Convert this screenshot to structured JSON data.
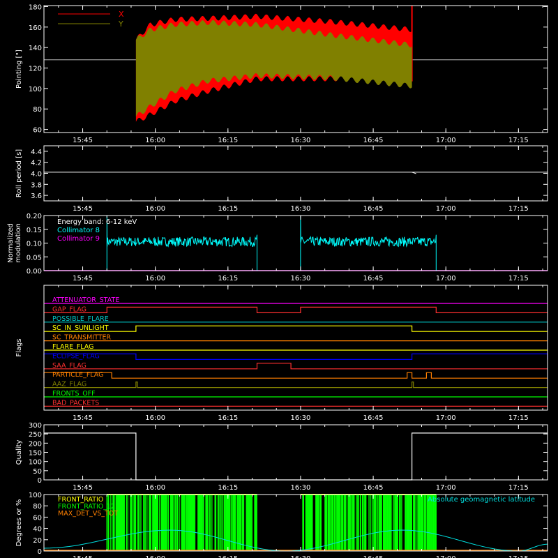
{
  "colors": {
    "background": "#000000",
    "axes": "#ffffff",
    "x_pointing": "#ff0000",
    "y_pointing": "#808000",
    "collimator8": "#00ffff",
    "collimator9": "#ff00ff",
    "front_ratio": "#ffff00",
    "front_ratio_1225": "#00ff00",
    "max_det_vs_tot": "#ff8000",
    "geomag_lat": "#00e0e0"
  },
  "time_ticks": [
    "15:45",
    "16:00",
    "16:15",
    "16:30",
    "16:45",
    "17:00",
    "17:15"
  ],
  "chart_data": [
    {
      "type": "line",
      "name": "pointing",
      "ylabel": "Pointing [\"]",
      "xlim": [
        "15:37",
        "17:21"
      ],
      "ylim": [
        57,
        181
      ],
      "yticks": [
        "180",
        "160",
        "140",
        "120",
        "100",
        "80",
        "60"
      ],
      "reference_line": 128,
      "series": [
        {
          "name": "X",
          "color": "#ff0000",
          "start": "15:56",
          "end": "16:53",
          "upper": [
            [
              0,
              150
            ],
            [
              3,
              165
            ],
            [
              8,
              170
            ],
            [
              15,
              171
            ],
            [
              25,
              173
            ],
            [
              40,
              168
            ],
            [
              57,
              160
            ]
          ],
          "lower": [
            [
              0,
              65
            ],
            [
              3,
              72
            ],
            [
              8,
              85
            ],
            [
              15,
              95
            ],
            [
              25,
              107
            ],
            [
              40,
              107
            ],
            [
              57,
              107
            ]
          ],
          "spike_end": 181
        },
        {
          "name": "Y",
          "color": "#808000",
          "start": "15:56",
          "end": "16:53",
          "upper": [
            [
              0,
              150
            ],
            [
              3,
              160
            ],
            [
              8,
              165
            ],
            [
              15,
              167
            ],
            [
              25,
              165
            ],
            [
              40,
              155
            ],
            [
              57,
              145
            ]
          ],
          "lower": [
            [
              0,
              70
            ],
            [
              3,
              80
            ],
            [
              8,
              95
            ],
            [
              15,
              105
            ],
            [
              25,
              110
            ],
            [
              40,
              108
            ],
            [
              57,
              100
            ]
          ]
        }
      ]
    },
    {
      "type": "line",
      "name": "roll-period",
      "ylabel": "Roll period [s]",
      "xlim": [
        "15:37",
        "17:21"
      ],
      "ylim": [
        3.5,
        4.5
      ],
      "yticks": [
        "4.4",
        "4.2",
        "4.0",
        "3.8",
        "3.6"
      ],
      "series": [
        {
          "name": "",
          "value": 4.02
        }
      ]
    },
    {
      "type": "line",
      "name": "modulation",
      "ylabel": "Normalized modulation",
      "xlim": [
        "15:37",
        "17:21"
      ],
      "ylim": [
        0,
        0.2
      ],
      "yticks": [
        "0.20",
        "0.15",
        "0.10",
        "0.05",
        "0.00"
      ],
      "annotation": "Energy band: 6-12 keV",
      "series": [
        {
          "name": "Collimator 8",
          "color": "#00ffff",
          "mean": 0.105,
          "segments": [
            [
              "15:50",
              "16:21"
            ],
            [
              "16:30",
              "16:58"
            ]
          ]
        },
        {
          "name": "Collimator 9",
          "color": "#ff00ff",
          "value": 0.0
        }
      ]
    },
    {
      "type": "line",
      "name": "flags",
      "ylabel": "Flags",
      "xlim": [
        "15:37",
        "17:21"
      ],
      "flags": [
        {
          "name": "ATTENUATOR_STATE",
          "color": "#ff00ff",
          "on": []
        },
        {
          "name": "GAP_FLAG",
          "color": "#ff3030",
          "on": [
            [
              "15:50",
              "16:21"
            ],
            [
              "16:30",
              "16:58"
            ]
          ]
        },
        {
          "name": "POSSIBLE_FLARE",
          "color": "#00c8c8",
          "on": []
        },
        {
          "name": "SC_IN_SUNLIGHT",
          "color": "#ffff00",
          "on": [
            [
              "15:56",
              "16:53"
            ]
          ]
        },
        {
          "name": "SC_TRANSMITTER",
          "color": "#ff8000",
          "on": []
        },
        {
          "name": "FLARE_FLAG",
          "color": "#ffff00",
          "on": []
        },
        {
          "name": "ECLIPSE_FLAG",
          "color": "#0000ff",
          "on": [
            [
              "15:37",
              "15:56"
            ],
            [
              "16:53",
              "17:21"
            ]
          ]
        },
        {
          "name": "SAA_FLAG",
          "color": "#ff3030",
          "on": [
            [
              "16:21",
              "16:28"
            ]
          ]
        },
        {
          "name": "PARTICLE_FLAG",
          "color": "#ff8000",
          "on": [
            [
              "15:37",
              "15:51"
            ],
            [
              "16:52",
              "16:53"
            ],
            [
              "16:56",
              "16:57"
            ]
          ]
        },
        {
          "name": "AAZ_FLAG",
          "color": "#808000",
          "on": [
            [
              "15:56",
              "15:56.3"
            ],
            [
              "16:53",
              "16:53.3"
            ]
          ]
        },
        {
          "name": "FRONTS_OFF",
          "color": "#00ff00",
          "on": []
        },
        {
          "name": "BAD_PACKETS",
          "color": "#ff3030",
          "on": []
        }
      ]
    },
    {
      "type": "line",
      "name": "quality",
      "ylabel": "Quality",
      "xlim": [
        "15:37",
        "17:21"
      ],
      "ylim": [
        0,
        300
      ],
      "yticks": [
        "300",
        "250",
        "200",
        "150",
        "100",
        "50",
        "0"
      ],
      "series": [
        {
          "name": "",
          "points": [
            [
              "15:37",
              255
            ],
            [
              "15:56",
              255
            ],
            [
              "15:56",
              0
            ],
            [
              "16:53",
              0
            ],
            [
              "16:53",
              255
            ],
            [
              "17:21",
              255
            ]
          ]
        }
      ]
    },
    {
      "type": "line",
      "name": "degrees",
      "ylabel": "Degrees or %",
      "xlim": [
        "15:37",
        "17:21"
      ],
      "ylim": [
        0,
        100
      ],
      "yticks": [
        "100",
        "80",
        "60",
        "40",
        "20",
        "0"
      ],
      "right_label": "Absolute geomagnetic latitude",
      "series": [
        {
          "name": "FRONT_RATIO",
          "color": "#ffff00",
          "segments": [
            [
              "15:50",
              "16:21"
            ],
            [
              "16:30",
              "16:58"
            ]
          ],
          "value": 100
        },
        {
          "name": "FRONT_RATIO_1225",
          "color": "#00ff00",
          "segments": [
            [
              "15:50",
              "16:21"
            ],
            [
              "16:30",
              "16:58"
            ]
          ],
          "value": 100
        },
        {
          "name": "MAX_DET_VS_TOT",
          "color": "#ff8000",
          "value": 0
        },
        {
          "name": "Absolute geomagnetic latitude",
          "color": "#00e0e0",
          "points": [
            [
              "15:37",
              5
            ],
            [
              "16:03",
              37
            ],
            [
              "16:27",
              0
            ],
            [
              "16:51",
              37
            ],
            [
              "17:15",
              0
            ],
            [
              "17:21",
              12
            ]
          ]
        }
      ]
    }
  ]
}
